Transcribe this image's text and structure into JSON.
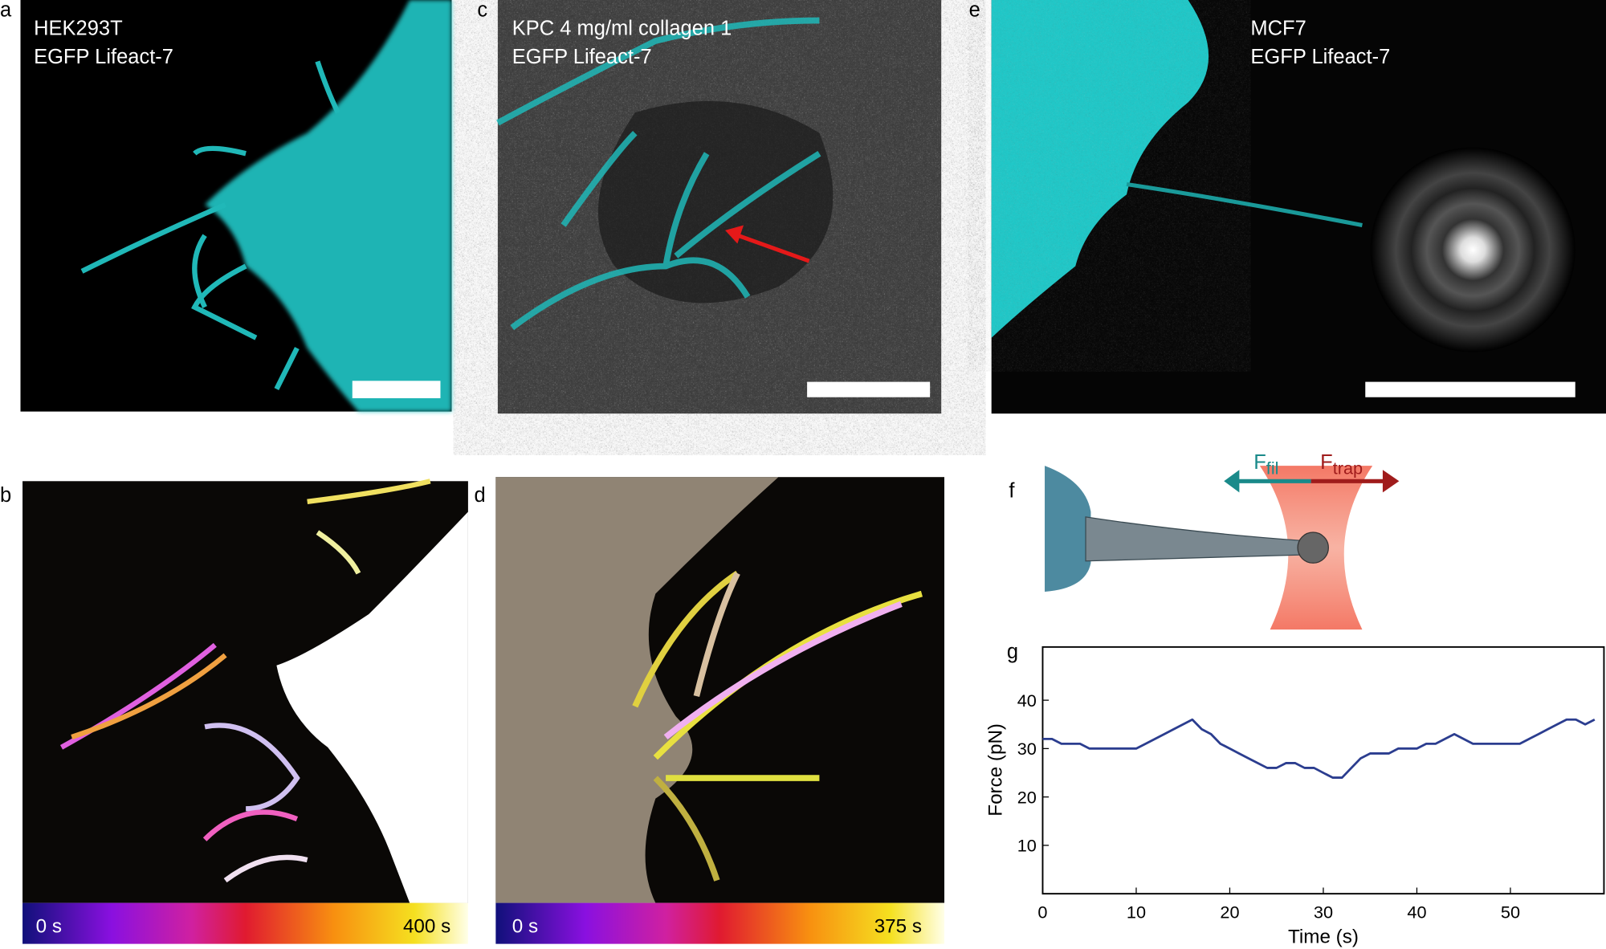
{
  "panels": {
    "a": {
      "letter": "a",
      "cell_line": "HEK293T",
      "marker": "EGFP Lifeact-7"
    },
    "b": {
      "letter": "b",
      "colorbar_start": "0 s",
      "colorbar_end": "400 s"
    },
    "c": {
      "letter": "c",
      "cell_line": "KPC 4 mg/ml collagen 1",
      "marker": "EGFP Lifeact-7"
    },
    "d": {
      "letter": "d",
      "colorbar_start": "0 s",
      "colorbar_end": "375 s"
    },
    "e": {
      "letter": "e",
      "cell_line": "MCF7",
      "marker": "EGFP Lifeact-7"
    },
    "f": {
      "letter": "f",
      "filament_force": {
        "symbol": "F",
        "subscript": "fil"
      },
      "trap_force": {
        "symbol": "F",
        "subscript": "trap"
      }
    },
    "g": {
      "letter": "g"
    }
  },
  "chart_data": {
    "type": "line",
    "x_label": "Time (s)",
    "y_label": "Force (pN)",
    "xlim": [
      0,
      60
    ],
    "ylim": [
      0,
      51
    ],
    "xticks": [
      0,
      10,
      20,
      30,
      40,
      50
    ],
    "yticks": [
      10,
      20,
      30,
      40
    ],
    "x": [
      0,
      1,
      2,
      3,
      4,
      5,
      6,
      7,
      8,
      9,
      10,
      11,
      12,
      13,
      14,
      15,
      16,
      17,
      18,
      19,
      20,
      21,
      22,
      23,
      24,
      25,
      26,
      27,
      28,
      29,
      30,
      31,
      32,
      33,
      34,
      35,
      36,
      37,
      38,
      39,
      40,
      41,
      42,
      43,
      44,
      45,
      46,
      47,
      48,
      49,
      50,
      51,
      52,
      53,
      54,
      55,
      56,
      57,
      58,
      59
    ],
    "series": [
      {
        "color": "#2b3d8f",
        "values": [
          32,
          32,
          31,
          31,
          31,
          30,
          30,
          30,
          30,
          30,
          30,
          31,
          32,
          33,
          34,
          35,
          36,
          34,
          33,
          31,
          30,
          29,
          28,
          27,
          26,
          26,
          27,
          27,
          26,
          26,
          25,
          24,
          24,
          26,
          28,
          29,
          29,
          29,
          30,
          30,
          30,
          31,
          31,
          32,
          33,
          32,
          31,
          31,
          31,
          31,
          31,
          31,
          32,
          33,
          34,
          35,
          36,
          36,
          35,
          36
        ]
      }
    ]
  }
}
